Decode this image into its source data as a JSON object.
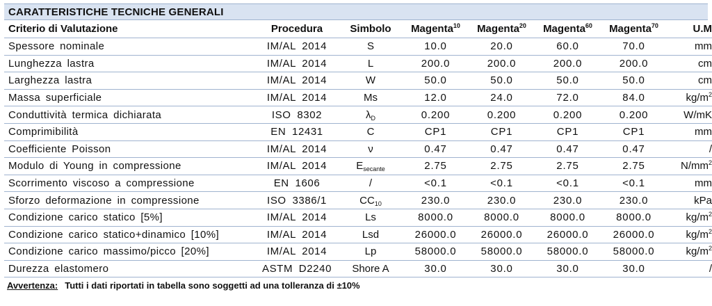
{
  "title": "CARATTERISTICHE TECNICHE GENERALI",
  "columns": {
    "criterio": "Criterio di Valutazione",
    "procedura": "Procedura",
    "simbolo": "Simbolo",
    "products": [
      {
        "name": "Magenta",
        "sup": "10"
      },
      {
        "name": "Magenta",
        "sup": "20"
      },
      {
        "name": "Magenta",
        "sup": "60"
      },
      {
        "name": "Magenta",
        "sup": "70"
      }
    ],
    "um": "U.M"
  },
  "rows": [
    {
      "criterio": "Spessore nominale",
      "procedura": "IM/AL 2014",
      "simbolo": "S",
      "simbolo_sub": "",
      "values": [
        "10.0",
        "20.0",
        "60.0",
        "70.0"
      ],
      "um": "mm",
      "um_sup": ""
    },
    {
      "criterio": "Lunghezza lastra",
      "procedura": "IM/AL 2014",
      "simbolo": "L",
      "simbolo_sub": "",
      "values": [
        "200.0",
        "200.0",
        "200.0",
        "200.0"
      ],
      "um": "cm",
      "um_sup": ""
    },
    {
      "criterio": "Larghezza lastra",
      "procedura": "IM/AL 2014",
      "simbolo": "W",
      "simbolo_sub": "",
      "values": [
        "50.0",
        "50.0",
        "50.0",
        "50.0"
      ],
      "um": "cm",
      "um_sup": ""
    },
    {
      "criterio": "Massa superficiale",
      "procedura": "IM/AL 2014",
      "simbolo": "Ms",
      "simbolo_sub": "",
      "values": [
        "12.0",
        "24.0",
        "72.0",
        "84.0"
      ],
      "um": "kg/m",
      "um_sup": "2"
    },
    {
      "criterio": "Conduttività termica dichiarata",
      "procedura": "ISO 8302",
      "simbolo": "λ",
      "simbolo_sub": "D",
      "values": [
        "0.200",
        "0.200",
        "0.200",
        "0.200"
      ],
      "um": "W/mK",
      "um_sup": ""
    },
    {
      "criterio": "Comprimibilità",
      "procedura": "EN 12431",
      "simbolo": "C",
      "simbolo_sub": "",
      "values": [
        "CP1",
        "CP1",
        "CP1",
        "CP1"
      ],
      "um": "mm",
      "um_sup": ""
    },
    {
      "criterio": "Coefficiente Poisson",
      "procedura": "IM/AL 2014",
      "simbolo": "ν",
      "simbolo_sub": "",
      "values": [
        "0.47",
        "0.47",
        "0.47",
        "0.47"
      ],
      "um": "/",
      "um_sup": ""
    },
    {
      "criterio": "Modulo di Young in compressione",
      "procedura": "IM/AL 2014",
      "simbolo": "E",
      "simbolo_sub": "secante",
      "values": [
        "2.75",
        "2.75",
        "2.75",
        "2.75"
      ],
      "um": "N/mm",
      "um_sup": "2"
    },
    {
      "criterio": "Scorrimento viscoso a compressione",
      "procedura": "EN 1606",
      "simbolo": "/",
      "simbolo_sub": "",
      "values": [
        "<0.1",
        "<0.1",
        "<0.1",
        "<0.1"
      ],
      "um": "mm",
      "um_sup": ""
    },
    {
      "criterio": "Sforzo deformazione in compressione",
      "procedura": "ISO 3386/1",
      "simbolo": "CC",
      "simbolo_sub": "10",
      "values": [
        "230.0",
        "230.0",
        "230.0",
        "230.0"
      ],
      "um": "kPa",
      "um_sup": ""
    },
    {
      "criterio": "Condizione carico statico [5%]",
      "procedura": "IM/AL 2014",
      "simbolo": "Ls",
      "simbolo_sub": "",
      "values": [
        "8000.0",
        "8000.0",
        "8000.0",
        "8000.0"
      ],
      "um": "kg/m",
      "um_sup": "2"
    },
    {
      "criterio": "Condizione carico statico+dinamico [10%]",
      "procedura": "IM/AL 2014",
      "simbolo": "Lsd",
      "simbolo_sub": "",
      "values": [
        "26000.0",
        "26000.0",
        "26000.0",
        "26000.0"
      ],
      "um": "kg/m",
      "um_sup": "2"
    },
    {
      "criterio": "Condizione carico massimo/picco [20%]",
      "procedura": "IM/AL 2014",
      "simbolo": "Lp",
      "simbolo_sub": "",
      "values": [
        "58000.0",
        "58000.0",
        "58000.0",
        "58000.0"
      ],
      "um": "kg/m",
      "um_sup": "2"
    },
    {
      "criterio": "Durezza elastomero",
      "procedura": "ASTM D2240",
      "simbolo": "Shore A",
      "simbolo_sub": "",
      "values": [
        "30.0",
        "30.0",
        "30.0",
        "30.0"
      ],
      "um": "/",
      "um_sup": ""
    }
  ],
  "note": {
    "label": "Avvertenza:",
    "text": "Tutti i dati riportati in tabella sono soggetti ad una tolleranza di ±10%"
  }
}
